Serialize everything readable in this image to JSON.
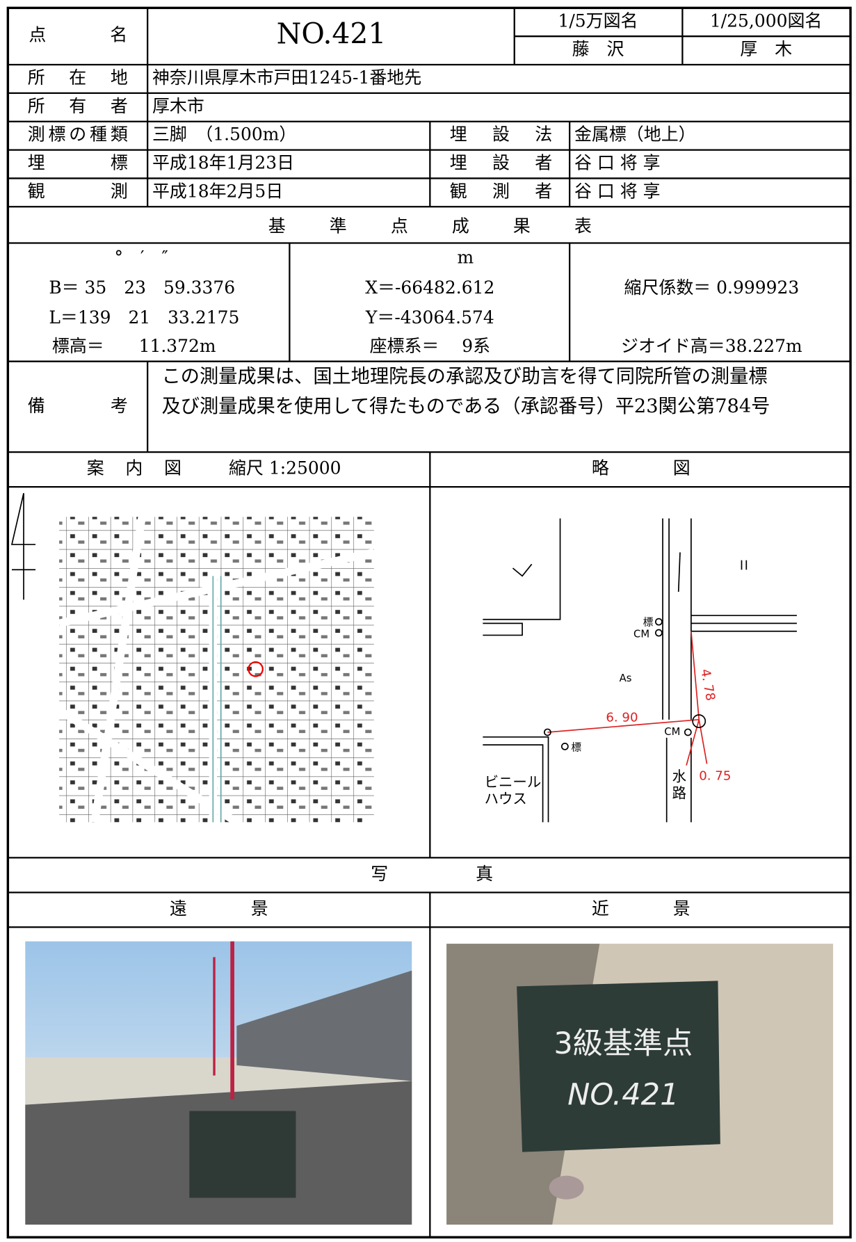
{
  "header": {
    "name_label": "点名",
    "name": "NO.421",
    "map50k_label": "1/5万図名",
    "map25k_label": "1/25,000図名",
    "map50k": "藤　沢",
    "map25k": "厚　木"
  },
  "location_label": "所在地",
  "location": "神奈川県厚木市戸田1245-1番地先",
  "owner_label": "所有者",
  "owner": "厚木市",
  "type_label": "測標の種類",
  "type": "三脚　（1.500m）",
  "burial_method_label": "埋設法",
  "burial_method": "金属標（地上）",
  "burial_label": "埋標",
  "burial_date": "平成18年1月23日",
  "burier_label": "埋設者",
  "burier": "谷 口 将 享",
  "observation_label": "観測",
  "observation_date": "平成18年2月5日",
  "observer_label": "観測者",
  "observer": "谷 口 将 享",
  "results": {
    "title": "基準点成果表",
    "unit_angle": "°　′　″",
    "B": "B＝ 35　23　59.3376",
    "L": "L＝139　21　33.2175",
    "height": "標高＝　　11.372m",
    "unit_m": "m",
    "X": "X＝-66482.612",
    "Y": "Y＝-43064.574",
    "coord": "座標系＝　 9系",
    "scale": "縮尺係数＝ 0.999923",
    "geoid": "ジオイド高＝38.227m"
  },
  "remarks_label": "備考",
  "remarks": [
    "この測量成果は、国土地理院長の承認及び助言を得て同院所管の測量標",
    "及び測量成果を使用して得たものである（承認番号）平23関公第784号"
  ],
  "guide_map": {
    "title": "案内図",
    "scale": "縮尺 1:25000"
  },
  "sketch": {
    "title": "略図",
    "labels": [
      "As",
      "6. 90",
      "4. 78",
      "0. 75",
      "標",
      "CM",
      "標",
      "CM",
      "ビニール",
      "ハウス",
      "水",
      "路"
    ]
  },
  "photos": {
    "title": "写真",
    "far": "遠景",
    "near": "近景",
    "board": [
      "3級基準点",
      "NO.421"
    ]
  }
}
